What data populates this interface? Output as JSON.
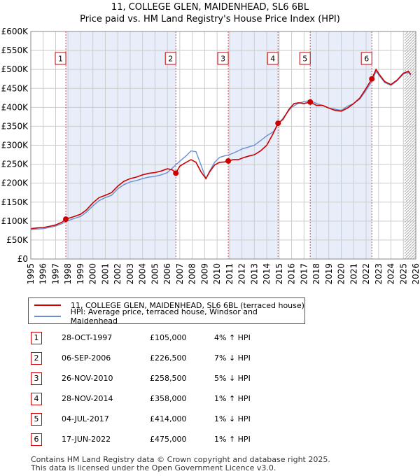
{
  "title_line1": "11, COLLEGE GLEN, MAIDENHEAD, SL6 6BL",
  "title_line2": "Price paid vs. HM Land Registry's House Price Index (HPI)",
  "colors": {
    "price_line": "#cc0000",
    "hpi_line": "#6a8fd0",
    "shade": "#e8eef9",
    "grid": "#cccccc",
    "marker": "#cc0000"
  },
  "legend": {
    "price_label": "11, COLLEGE GLEN, MAIDENHEAD, SL6 6BL (terraced house)",
    "hpi_label": "HPI: Average price, terraced house, Windsor and Maidenhead"
  },
  "chart_data": {
    "type": "line",
    "x_range": [
      1995,
      2026
    ],
    "ylim": [
      0,
      600000
    ],
    "y_ticks": [
      0,
      50000,
      100000,
      150000,
      200000,
      250000,
      300000,
      350000,
      400000,
      450000,
      500000,
      550000,
      600000
    ],
    "y_tick_labels": [
      "£0",
      "£50K",
      "£100K",
      "£150K",
      "£200K",
      "£250K",
      "£300K",
      "£350K",
      "£400K",
      "£450K",
      "£500K",
      "£550K",
      "£600K"
    ],
    "x_ticks": [
      1995,
      1996,
      1997,
      1998,
      1999,
      2000,
      2001,
      2002,
      2003,
      2004,
      2005,
      2006,
      2007,
      2008,
      2009,
      2010,
      2011,
      2012,
      2013,
      2014,
      2015,
      2016,
      2017,
      2018,
      2019,
      2020,
      2021,
      2022,
      2023,
      2024,
      2025,
      2026
    ],
    "x_tick_labels": [
      "1995",
      "1996",
      "1997",
      "1998",
      "1999",
      "2000",
      "2001",
      "2002",
      "2003",
      "2004",
      "2005",
      "2006",
      "2007",
      "2008",
      "2009",
      "2010",
      "2011",
      "2012",
      "2013",
      "2014",
      "2015",
      "2016",
      "2017",
      "2018",
      "2019",
      "2020",
      "2021",
      "2022",
      "2023",
      "2024",
      "2025",
      "2026"
    ],
    "shaded_periods": [
      [
        1997.82,
        2006.68
      ],
      [
        2010.9,
        2014.91
      ],
      [
        2017.5,
        2022.46
      ]
    ],
    "hatch_from": 2025.1,
    "series": [
      {
        "name": "11, COLLEGE GLEN, MAIDENHEAD, SL6 6BL (terraced house)",
        "x": [
          1995,
          1995.5,
          1996,
          1996.5,
          1997,
          1997.5,
          1997.82,
          1998.5,
          1999,
          1999.5,
          2000,
          2000.5,
          2001,
          2001.5,
          2002,
          2002.5,
          2003,
          2003.5,
          2004,
          2004.5,
          2005,
          2005.5,
          2006,
          2006.4,
          2006.68,
          2007,
          2007.5,
          2007.9,
          2008.3,
          2008.7,
          2009.1,
          2009.4,
          2009.8,
          2010.2,
          2010.6,
          2010.9,
          2011.3,
          2011.7,
          2012.2,
          2012.6,
          2013,
          2013.5,
          2014,
          2014.5,
          2014.91,
          2015.3,
          2015.8,
          2016.2,
          2016.6,
          2017,
          2017.5,
          2018,
          2018.5,
          2019,
          2019.5,
          2020,
          2020.5,
          2021,
          2021.5,
          2022,
          2022.46,
          2022.8,
          2023.1,
          2023.5,
          2024,
          2024.5,
          2025,
          2025.4,
          2025.6
        ],
        "values": [
          80000,
          82000,
          83000,
          86000,
          90000,
          97000,
          105000,
          112000,
          118000,
          130000,
          148000,
          162000,
          168000,
          175000,
          192000,
          205000,
          212000,
          216000,
          222000,
          226000,
          228000,
          232000,
          238000,
          235000,
          226500,
          245000,
          255000,
          262000,
          255000,
          230000,
          212000,
          230000,
          248000,
          255000,
          256000,
          258500,
          262000,
          262000,
          268000,
          272000,
          275000,
          285000,
          300000,
          330000,
          358000,
          368000,
          395000,
          410000,
          412000,
          410000,
          414000,
          405000,
          405000,
          398000,
          392000,
          390000,
          398000,
          410000,
          425000,
          450000,
          475000,
          500000,
          485000,
          468000,
          460000,
          472000,
          490000,
          495000,
          487000
        ]
      },
      {
        "name": "HPI: Average price, terraced house, Windsor and Maidenhead",
        "x": [
          1995,
          1995.5,
          1996,
          1996.5,
          1997,
          1997.5,
          1998,
          1998.5,
          1999,
          1999.5,
          2000,
          2000.5,
          2001,
          2001.5,
          2002,
          2002.5,
          2003,
          2003.5,
          2004,
          2004.5,
          2005,
          2005.5,
          2006,
          2006.5,
          2007,
          2007.5,
          2007.9,
          2008.3,
          2008.7,
          2009.1,
          2009.4,
          2009.8,
          2010.2,
          2010.6,
          2011,
          2011.5,
          2012,
          2012.5,
          2013,
          2013.5,
          2014,
          2014.5,
          2015,
          2015.5,
          2016,
          2016.5,
          2017,
          2017.5,
          2018,
          2018.5,
          2019,
          2019.5,
          2020,
          2020.5,
          2021,
          2021.5,
          2022,
          2022.5,
          2022.8,
          2023.1,
          2023.5,
          2024,
          2024.5,
          2025,
          2025.4,
          2025.6
        ],
        "values": [
          78000,
          79000,
          80000,
          83000,
          87000,
          93000,
          101000,
          107000,
          112000,
          124000,
          140000,
          154000,
          162000,
          168000,
          185000,
          196000,
          203000,
          207000,
          212000,
          216000,
          218000,
          222000,
          228000,
          243000,
          258000,
          272000,
          285000,
          283000,
          248000,
          212000,
          232000,
          255000,
          268000,
          272000,
          275000,
          282000,
          290000,
          295000,
          300000,
          312000,
          325000,
          335000,
          358000,
          380000,
          400000,
          410000,
          415000,
          418000,
          410000,
          405000,
          398000,
          395000,
          392000,
          403000,
          410000,
          422000,
          445000,
          470000,
          495000,
          482000,
          465000,
          458000,
          470000,
          488000,
          492000,
          485000
        ]
      }
    ],
    "sales": [
      {
        "n": "1",
        "x": 1997.82,
        "y": 105000
      },
      {
        "n": "2",
        "x": 2006.68,
        "y": 226500
      },
      {
        "n": "3",
        "x": 2010.9,
        "y": 258500
      },
      {
        "n": "4",
        "x": 2014.91,
        "y": 358000
      },
      {
        "n": "5",
        "x": 2017.5,
        "y": 414000
      },
      {
        "n": "6",
        "x": 2022.46,
        "y": 475000
      }
    ]
  },
  "transactions": [
    {
      "n": "1",
      "date": "28-OCT-1997",
      "price": "£105,000",
      "hpi": "4% ↑ HPI"
    },
    {
      "n": "2",
      "date": "06-SEP-2006",
      "price": "£226,500",
      "hpi": "7% ↓ HPI"
    },
    {
      "n": "3",
      "date": "26-NOV-2010",
      "price": "£258,500",
      "hpi": "5% ↓ HPI"
    },
    {
      "n": "4",
      "date": "28-NOV-2014",
      "price": "£358,000",
      "hpi": "1% ↑ HPI"
    },
    {
      "n": "5",
      "date": "04-JUL-2017",
      "price": "£414,000",
      "hpi": "1% ↓ HPI"
    },
    {
      "n": "6",
      "date": "17-JUN-2022",
      "price": "£475,000",
      "hpi": "1% ↑ HPI"
    }
  ],
  "footer_line1": "Contains HM Land Registry data © Crown copyright and database right 2025.",
  "footer_line2": "This data is licensed under the Open Government Licence v3.0."
}
